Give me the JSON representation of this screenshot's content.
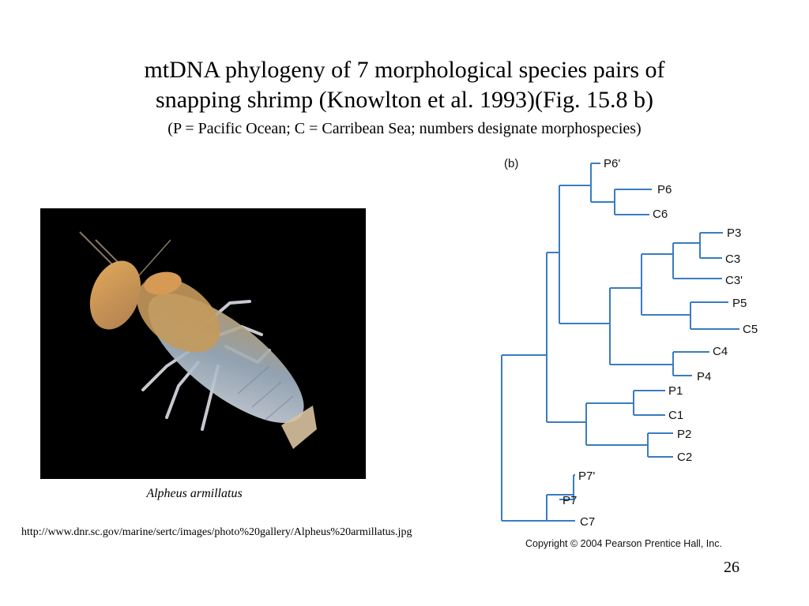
{
  "slide": {
    "title_line1": "mtDNA phylogeny of 7 morphological species pairs of",
    "title_line2": "snapping shrimp (Knowlton et al. 1993)(Fig. 15.8 b)",
    "subtitle": "(P = Pacific Ocean; C = Carribean Sea; numbers designate morphospecies)",
    "caption": "Alpheus armillatus",
    "url": "http://www.dnr.sc.gov/marine/sertc/images/photo%20gallery/Alpheus%20armillatus.jpg",
    "page_number": "26"
  },
  "figure": {
    "panel_label": "(b)",
    "copyright": "Copyright © 2004 Pearson Prentice Hall, Inc.",
    "line_color": "#3a7cc0",
    "taxa": [
      "P6'",
      "P6",
      "C6",
      "P3",
      "C3",
      "C3'",
      "P5",
      "C5",
      "C4",
      "P4",
      "P1",
      "C1",
      "P2",
      "C2",
      "P7'",
      "P7",
      "C7"
    ]
  }
}
